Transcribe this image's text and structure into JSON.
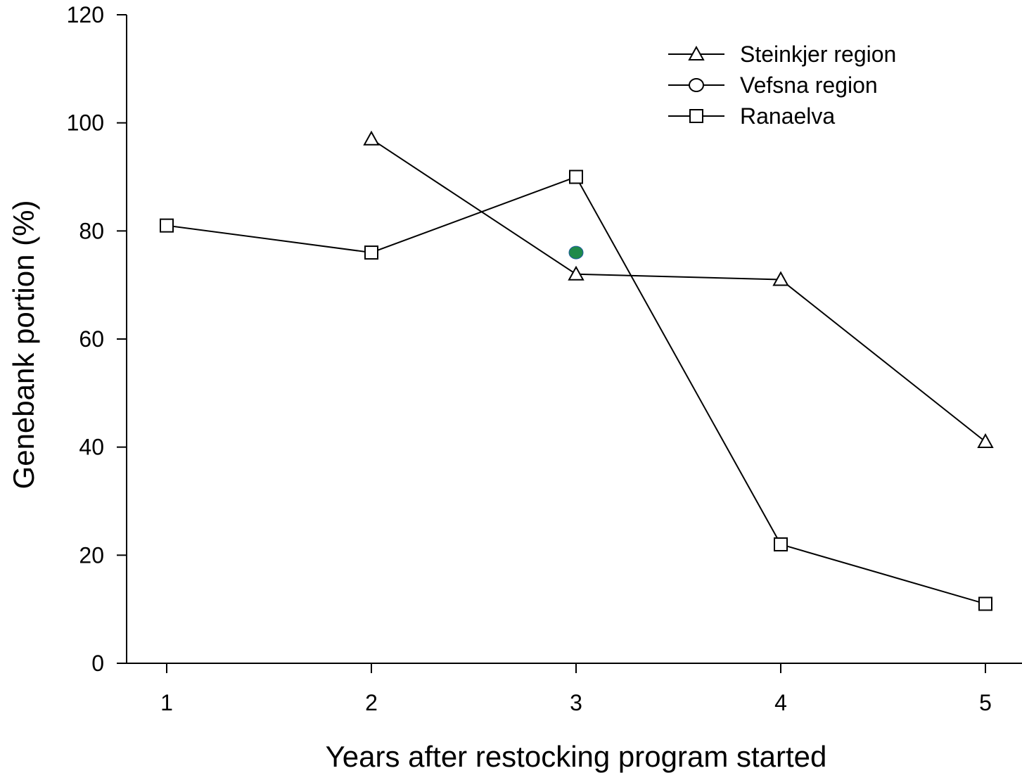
{
  "chart_data": {
    "type": "line",
    "xlabel": "Years after restocking program started",
    "ylabel": "Genebank portion (%)",
    "xlim": [
      0.8,
      5.4
    ],
    "ylim": [
      0,
      120
    ],
    "x_ticks": [
      "1",
      "2",
      "3",
      "4",
      "5"
    ],
    "y_ticks": [
      "0",
      "20",
      "40",
      "60",
      "80",
      "100",
      "120"
    ],
    "grid": false,
    "legend_position": "top-right",
    "series": [
      {
        "name": "Steinkjer region",
        "marker": "triangle",
        "x": [
          2,
          3,
          4,
          5
        ],
        "y": [
          97,
          72,
          71,
          41
        ]
      },
      {
        "name": "Vefsna region",
        "marker": "circle",
        "marker_color": "#1e8a4a",
        "x": [
          3
        ],
        "y": [
          76
        ]
      },
      {
        "name": "Ranaelva",
        "marker": "square",
        "x": [
          1,
          2,
          3,
          4,
          5
        ],
        "y": [
          81,
          76,
          90,
          22,
          11
        ]
      }
    ]
  }
}
